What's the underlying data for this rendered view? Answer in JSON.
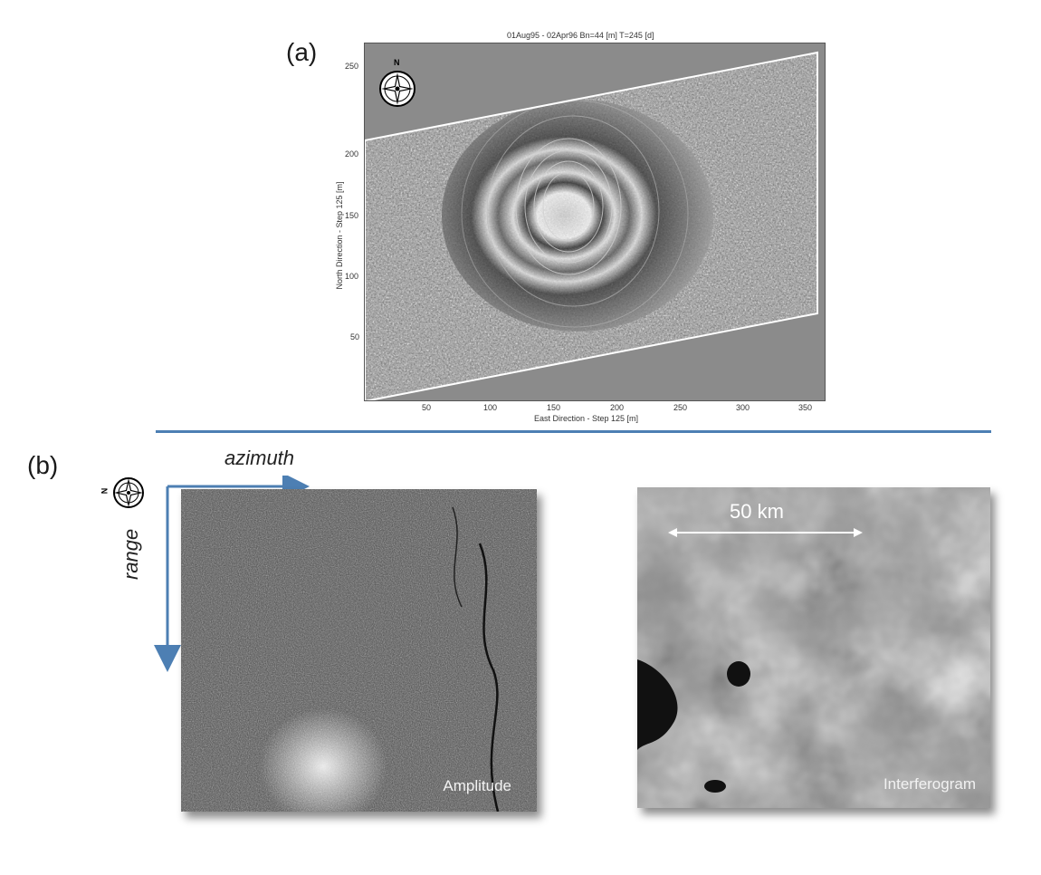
{
  "panel_a": {
    "label": "(a)",
    "title": "01Aug95 - 02Apr96  Bn=44 [m]  T=245 [d]",
    "xlabel": "East Direction - Step 125 [m]",
    "ylabel": "North Direction - Step 125 [m]",
    "xticks": [
      "50",
      "100",
      "150",
      "200",
      "250",
      "300",
      "350"
    ],
    "yticks": [
      "250",
      "200",
      "150",
      "100",
      "50"
    ],
    "compass_letter": "N",
    "compass_icon": "compass-rose-icon"
  },
  "panel_b": {
    "label": "(b)",
    "azimuth_label": "azimuth",
    "range_label": "range",
    "compass_letter": "N",
    "compass_icon": "compass-rose-icon",
    "amplitude_label": "Amplitude",
    "interferogram_label": "Interferogram",
    "scale_bar_label": "50 km"
  },
  "colors": {
    "divider": "#4d7fb3",
    "arrow": "#4d7fb3",
    "plot_background": "#8b8b8b"
  }
}
